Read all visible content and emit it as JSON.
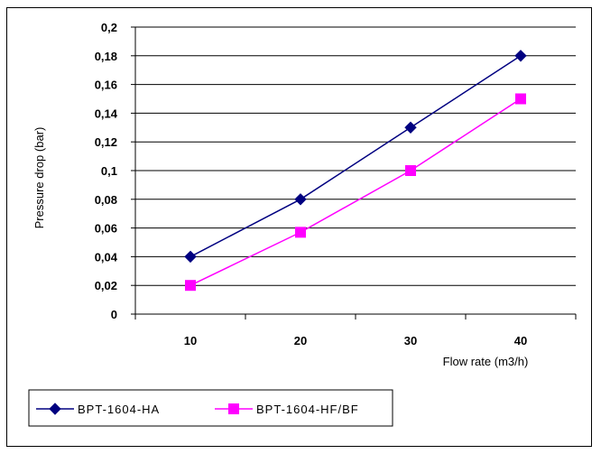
{
  "chart_data": {
    "type": "line",
    "title": "",
    "xlabel": "Flow rate (m3/h)",
    "ylabel": "Pressure drop  (bar)",
    "categories": [
      "10",
      "20",
      "30",
      "40"
    ],
    "ylim": [
      0,
      0.2
    ],
    "yticks": [
      "0",
      "0,02",
      "0,04",
      "0,06",
      "0,08",
      "0,1",
      "0,12",
      "0,14",
      "0,16",
      "0,18",
      "0,2"
    ],
    "grid": true,
    "legend_position": "bottom-left",
    "series": [
      {
        "name": "BPT-1604-HA",
        "values": [
          0.04,
          0.08,
          0.13,
          0.18
        ],
        "color": "#000080",
        "marker": "diamond"
      },
      {
        "name": "BPT-1604-HF/BF",
        "values": [
          0.02,
          0.057,
          0.1,
          0.15
        ],
        "color": "#ff00ff",
        "marker": "square"
      }
    ]
  }
}
